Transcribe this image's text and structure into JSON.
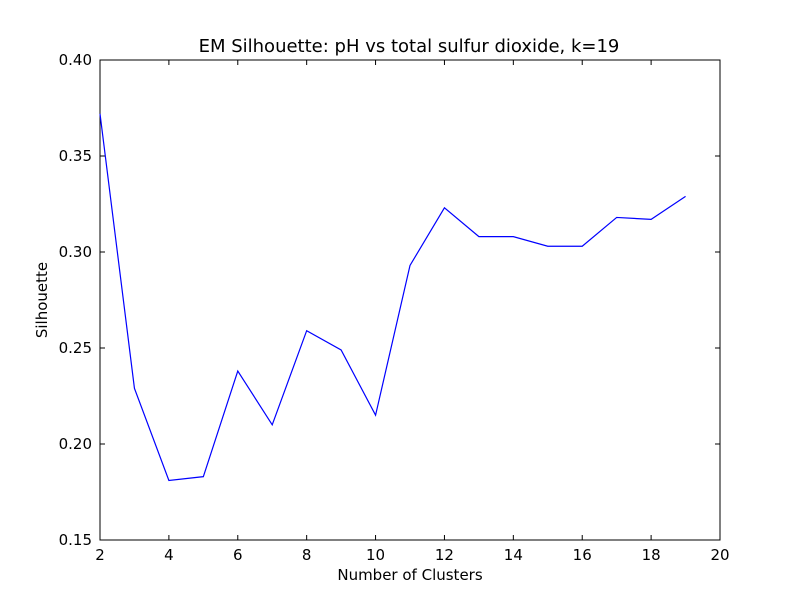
{
  "chart_data": {
    "type": "line",
    "title": "EM Silhouette: pH vs total sulfur dioxide, k=19",
    "xlabel": "Number of Clusters",
    "ylabel": "Silhouette",
    "xlim": [
      2,
      20
    ],
    "ylim": [
      0.15,
      0.4
    ],
    "xticks": [
      2,
      4,
      6,
      8,
      10,
      12,
      14,
      16,
      18,
      20
    ],
    "yticks": [
      "0.15",
      "0.20",
      "0.25",
      "0.30",
      "0.35",
      "0.40"
    ],
    "grid": false,
    "series": [
      {
        "color": "#0000ff",
        "x": [
          2,
          3,
          4,
          5,
          6,
          7,
          8,
          9,
          10,
          11,
          12,
          13,
          14,
          15,
          16,
          17,
          18,
          19
        ],
        "y": [
          0.372,
          0.229,
          0.181,
          0.183,
          0.238,
          0.21,
          0.259,
          0.249,
          0.215,
          0.293,
          0.323,
          0.308,
          0.308,
          0.303,
          0.303,
          0.318,
          0.317,
          0.329
        ]
      }
    ]
  }
}
